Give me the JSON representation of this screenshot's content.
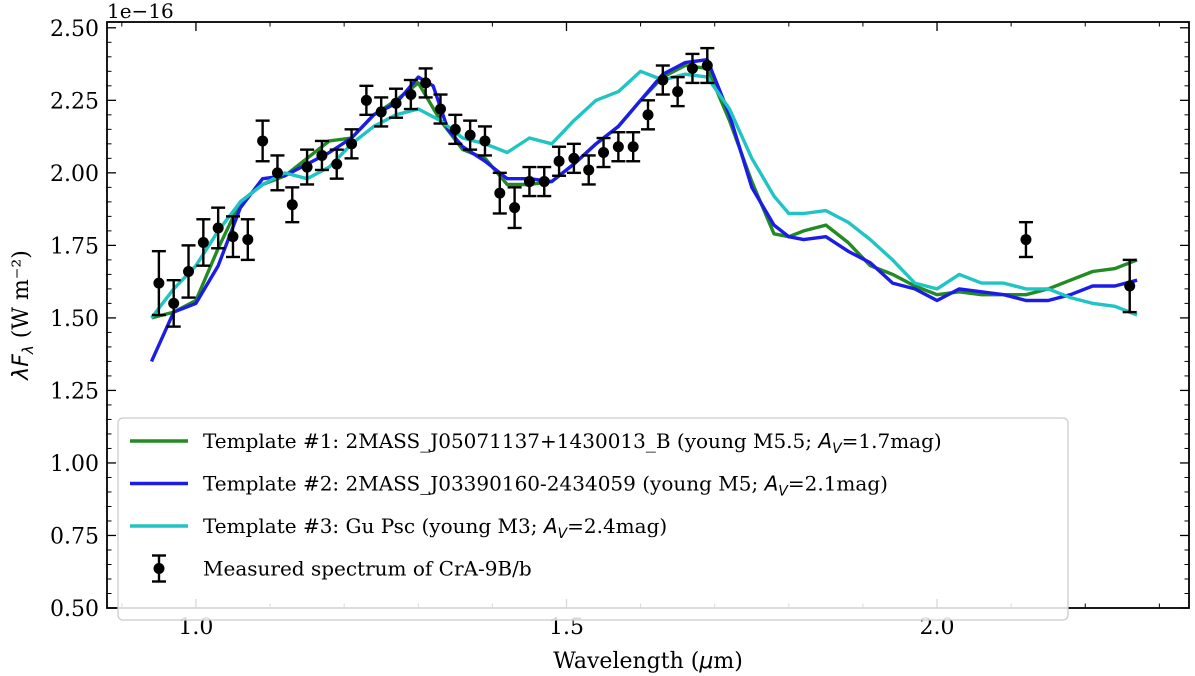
{
  "chart_data": {
    "type": "line",
    "xlabel": "Wavelength (μm)",
    "ylabel": "λF_λ (W m⁻²)",
    "y_offset_text": "1e−16",
    "xlim": [
      0.88,
      2.34
    ],
    "ylim": [
      0.5,
      2.52
    ],
    "x_ticks": [
      1.0,
      1.5,
      2.0
    ],
    "x_tick_labels": [
      "1.0",
      "1.5",
      "2.0"
    ],
    "y_ticks": [
      0.5,
      0.75,
      1.0,
      1.25,
      1.5,
      1.75,
      2.0,
      2.25,
      2.5
    ],
    "y_tick_labels": [
      "0.50",
      "0.75",
      "1.00",
      "1.25",
      "1.50",
      "1.75",
      "2.00",
      "2.25",
      "2.50"
    ],
    "grid": false,
    "legend_position": "lower-left",
    "legend": [
      {
        "series": "t1",
        "kind": "line",
        "color": "#228b22",
        "parts": [
          {
            "t": "Template #1: 2MASS_J05071137+1430013_B (young M5.5; "
          },
          {
            "t": "A",
            "i": true
          },
          {
            "t": "V",
            "i": true,
            "sub": true
          },
          {
            "t": "=1.7mag)"
          }
        ]
      },
      {
        "series": "t2",
        "kind": "line",
        "color": "#1c1ce6",
        "parts": [
          {
            "t": "Template #2: 2MASS_J03390160-2434059 (young M5; "
          },
          {
            "t": "A",
            "i": true
          },
          {
            "t": "V",
            "i": true,
            "sub": true
          },
          {
            "t": "=2.1mag)"
          }
        ]
      },
      {
        "series": "t3",
        "kind": "line",
        "color": "#20c4c4",
        "parts": [
          {
            "t": "Template #3: Gu Psc (young M3; "
          },
          {
            "t": "A",
            "i": true
          },
          {
            "t": "V",
            "i": true,
            "sub": true
          },
          {
            "t": "=2.4mag)"
          }
        ]
      },
      {
        "series": "meas",
        "kind": "errorbar",
        "color": "#000000",
        "parts": [
          {
            "t": "Measured spectrum of CrA-9B/b"
          }
        ]
      }
    ],
    "series": [
      {
        "id": "t1",
        "name": "Template #1: 2MASS_J05071137+1430013_B (young M5.5; A_V=1.7mag)",
        "color": "#228b22",
        "x": [
          0.94,
          0.97,
          1.0,
          1.03,
          1.06,
          1.09,
          1.12,
          1.15,
          1.18,
          1.21,
          1.24,
          1.27,
          1.3,
          1.33,
          1.36,
          1.39,
          1.42,
          1.45,
          1.48,
          1.51,
          1.54,
          1.57,
          1.6,
          1.63,
          1.66,
          1.69,
          1.72,
          1.75,
          1.78,
          1.8,
          1.82,
          1.85,
          1.88,
          1.91,
          1.94,
          1.97,
          2.0,
          2.03,
          2.06,
          2.09,
          2.12,
          2.15,
          2.18,
          2.21,
          2.24,
          2.27
        ],
        "y": [
          1.5,
          1.52,
          1.56,
          1.74,
          1.9,
          1.96,
          1.99,
          2.05,
          2.11,
          2.12,
          2.2,
          2.25,
          2.31,
          2.18,
          2.08,
          2.05,
          1.96,
          1.96,
          1.97,
          2.03,
          2.1,
          2.16,
          2.25,
          2.33,
          2.37,
          2.36,
          2.18,
          1.97,
          1.79,
          1.78,
          1.8,
          1.82,
          1.76,
          1.68,
          1.65,
          1.61,
          1.58,
          1.59,
          1.58,
          1.58,
          1.58,
          1.6,
          1.63,
          1.66,
          1.67,
          1.7
        ]
      },
      {
        "id": "t2",
        "name": "Template #2: 2MASS_J03390160-2434059 (young M5; A_V=2.1mag)",
        "color": "#1c1ce6",
        "x": [
          0.94,
          0.97,
          1.0,
          1.03,
          1.06,
          1.09,
          1.12,
          1.15,
          1.18,
          1.21,
          1.24,
          1.27,
          1.3,
          1.32,
          1.34,
          1.36,
          1.39,
          1.42,
          1.45,
          1.48,
          1.51,
          1.54,
          1.57,
          1.6,
          1.63,
          1.66,
          1.69,
          1.72,
          1.75,
          1.78,
          1.8,
          1.82,
          1.85,
          1.88,
          1.91,
          1.94,
          1.97,
          2.0,
          2.03,
          2.06,
          2.09,
          2.12,
          2.15,
          2.18,
          2.21,
          2.24,
          2.27
        ],
        "y": [
          1.35,
          1.52,
          1.55,
          1.68,
          1.88,
          1.98,
          1.99,
          2.03,
          2.07,
          2.12,
          2.2,
          2.24,
          2.33,
          2.3,
          2.15,
          2.09,
          2.04,
          1.98,
          1.98,
          1.97,
          2.03,
          2.1,
          2.16,
          2.25,
          2.34,
          2.38,
          2.39,
          2.2,
          1.95,
          1.82,
          1.78,
          1.77,
          1.78,
          1.73,
          1.69,
          1.62,
          1.6,
          1.56,
          1.6,
          1.59,
          1.58,
          1.56,
          1.56,
          1.58,
          1.61,
          1.61,
          1.63
        ]
      },
      {
        "id": "t3",
        "name": "Template #3: Gu Psc (young M3; A_V=2.4mag)",
        "color": "#20c4c4",
        "x": [
          0.94,
          0.97,
          1.0,
          1.03,
          1.06,
          1.09,
          1.12,
          1.15,
          1.18,
          1.21,
          1.24,
          1.27,
          1.3,
          1.33,
          1.36,
          1.39,
          1.42,
          1.45,
          1.48,
          1.51,
          1.54,
          1.57,
          1.6,
          1.63,
          1.66,
          1.69,
          1.72,
          1.75,
          1.78,
          1.8,
          1.82,
          1.85,
          1.88,
          1.91,
          1.94,
          1.97,
          2.0,
          2.03,
          2.06,
          2.09,
          2.12,
          2.15,
          2.18,
          2.21,
          2.24,
          2.27
        ],
        "y": [
          1.5,
          1.6,
          1.68,
          1.8,
          1.9,
          1.96,
          2.0,
          1.98,
          2.02,
          2.1,
          2.16,
          2.2,
          2.22,
          2.18,
          2.12,
          2.1,
          2.07,
          2.12,
          2.1,
          2.18,
          2.25,
          2.28,
          2.35,
          2.32,
          2.34,
          2.33,
          2.22,
          2.05,
          1.92,
          1.86,
          1.86,
          1.87,
          1.83,
          1.77,
          1.7,
          1.62,
          1.6,
          1.65,
          1.62,
          1.62,
          1.6,
          1.6,
          1.57,
          1.55,
          1.54,
          1.51
        ]
      },
      {
        "id": "meas",
        "name": "Measured spectrum of CrA-9B/b",
        "color": "#000000",
        "x": [
          0.95,
          0.97,
          0.99,
          1.01,
          1.03,
          1.05,
          1.07,
          1.09,
          1.11,
          1.13,
          1.15,
          1.17,
          1.19,
          1.21,
          1.23,
          1.25,
          1.27,
          1.29,
          1.31,
          1.33,
          1.35,
          1.37,
          1.39,
          1.41,
          1.43,
          1.45,
          1.47,
          1.49,
          1.51,
          1.53,
          1.55,
          1.57,
          1.59,
          1.61,
          1.63,
          1.65,
          1.67,
          1.69,
          2.12,
          2.26
        ],
        "y": [
          1.62,
          1.55,
          1.66,
          1.76,
          1.81,
          1.78,
          1.77,
          2.11,
          2.0,
          1.89,
          2.02,
          2.06,
          2.03,
          2.1,
          2.25,
          2.21,
          2.24,
          2.27,
          2.31,
          2.22,
          2.15,
          2.13,
          2.11,
          1.93,
          1.88,
          1.97,
          1.97,
          2.04,
          2.05,
          2.01,
          2.07,
          2.09,
          2.09,
          2.2,
          2.32,
          2.28,
          2.36,
          2.37,
          1.77,
          1.61
        ],
        "err": [
          0.11,
          0.08,
          0.09,
          0.08,
          0.07,
          0.07,
          0.07,
          0.07,
          0.06,
          0.06,
          0.06,
          0.05,
          0.05,
          0.05,
          0.05,
          0.05,
          0.05,
          0.05,
          0.05,
          0.05,
          0.05,
          0.05,
          0.05,
          0.07,
          0.07,
          0.05,
          0.05,
          0.05,
          0.05,
          0.05,
          0.05,
          0.05,
          0.05,
          0.05,
          0.05,
          0.05,
          0.05,
          0.06,
          0.06,
          0.09
        ]
      }
    ]
  }
}
